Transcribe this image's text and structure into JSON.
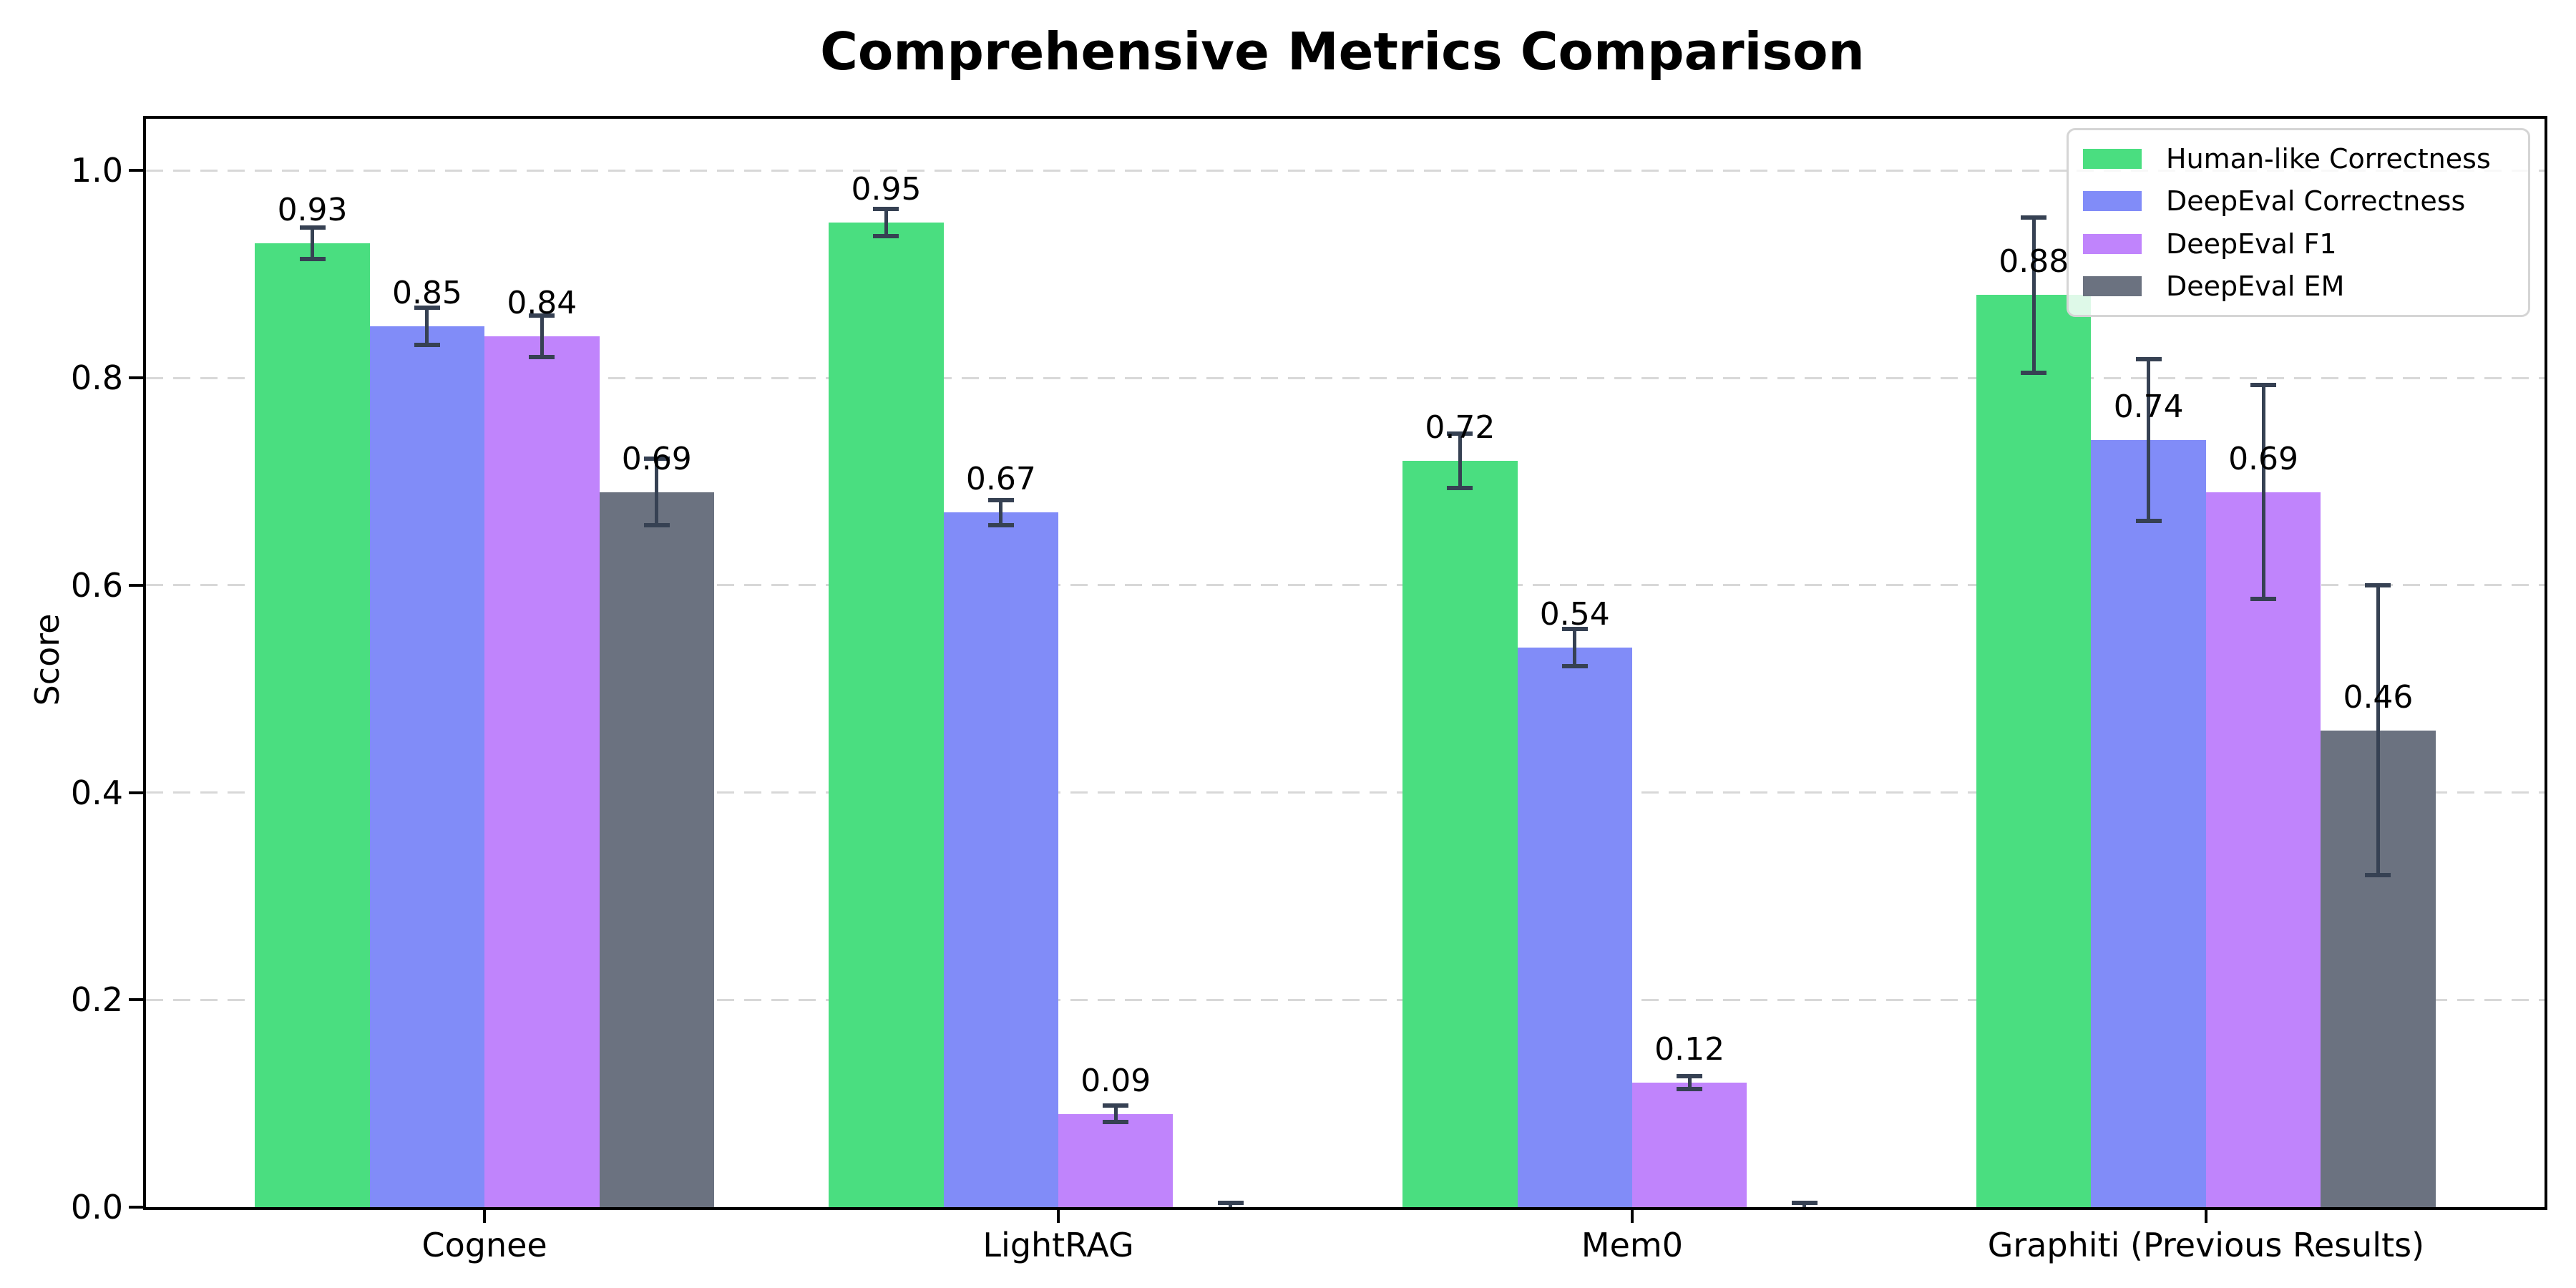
{
  "title": "Comprehensive Metrics Comparison",
  "axes": {
    "ylabel": "Score",
    "y_ticks": [
      "0.0",
      "0.2",
      "0.4",
      "0.6",
      "0.8",
      "1.0"
    ],
    "x_ticks": [
      "Cognee",
      "LightRAG",
      "Mem0",
      "Graphiti (Previous Results)"
    ]
  },
  "colors": {
    "series_green": "#4ade80",
    "series_blue": "#818cf8",
    "series_purple": "#c084fc",
    "series_gray": "#6b7280",
    "error_bar": "#364153",
    "gridline": "#d8d8d8",
    "axis_spine": "#000000",
    "legend_border": "#d5d5d5"
  },
  "chart_data": {
    "type": "bar",
    "title": "Comprehensive Metrics Comparison",
    "categories": [
      "Cognee",
      "LightRAG",
      "Mem0",
      "Graphiti (Previous Results)"
    ],
    "series": [
      {
        "name": "Human-like Correctness",
        "color": "#4ade80",
        "values": [
          0.93,
          0.95,
          0.72,
          0.88
        ],
        "errors": [
          0.015,
          0.013,
          0.026,
          0.075
        ],
        "bar_labels": [
          "0.93",
          "0.95",
          "0.72",
          "0.88"
        ]
      },
      {
        "name": "DeepEval Correctness",
        "color": "#818cf8",
        "values": [
          0.85,
          0.67,
          0.54,
          0.74
        ],
        "errors": [
          0.018,
          0.012,
          0.018,
          0.078
        ],
        "bar_labels": [
          "0.85",
          "0.67",
          "0.54",
          "0.74"
        ]
      },
      {
        "name": "DeepEval F1",
        "color": "#c084fc",
        "values": [
          0.84,
          0.09,
          0.12,
          0.69
        ],
        "errors": [
          0.02,
          0.008,
          0.006,
          0.103
        ],
        "bar_labels": [
          "0.84",
          "0.09",
          "0.12",
          "0.69"
        ]
      },
      {
        "name": "DeepEval EM",
        "color": "#6b7280",
        "values": [
          0.69,
          0.0,
          0.0,
          0.46
        ],
        "errors": [
          0.032,
          0.004,
          0.004,
          0.14
        ],
        "bar_labels": [
          "0.69",
          null,
          null,
          "0.46"
        ]
      }
    ],
    "xlabel": "",
    "ylabel": "Score",
    "ylim": [
      0,
      1.05
    ],
    "grid": "horizontal-dashed",
    "legend_position": "upper-right",
    "bar_group_offsets": [
      -0.3,
      -0.1,
      0.1,
      0.3
    ],
    "bar_width_units": 0.2
  }
}
